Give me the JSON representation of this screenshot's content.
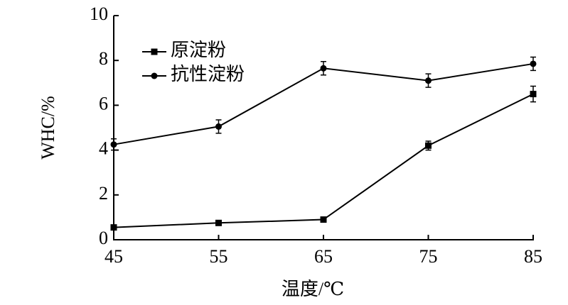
{
  "chart_data": {
    "type": "line",
    "x_label": "温度/℃",
    "y_label": "WHC/%",
    "x": [
      45,
      55,
      65,
      75,
      85
    ],
    "xlim": [
      45,
      85
    ],
    "xticks": [
      45,
      55,
      65,
      75,
      85
    ],
    "ylim": [
      0,
      10
    ],
    "yticks": [
      0,
      2,
      4,
      6,
      8,
      10
    ],
    "legend": "upper left",
    "series": [
      {
        "name": "原淀粉",
        "color": "#000000",
        "marker": "square",
        "values": [
          0.55,
          0.75,
          0.9,
          4.2,
          6.5
        ],
        "errors": [
          0.05,
          0.05,
          0.05,
          0.2,
          0.35
        ]
      },
      {
        "name": "抗性淀粉",
        "color": "#000000",
        "marker": "circle",
        "values": [
          4.25,
          5.05,
          7.65,
          7.1,
          7.85
        ],
        "errors": [
          0.25,
          0.3,
          0.3,
          0.3,
          0.3
        ]
      }
    ]
  }
}
